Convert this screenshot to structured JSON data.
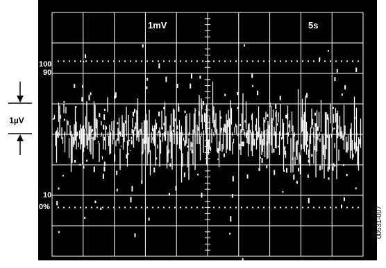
{
  "chart_data": {
    "type": "line",
    "title": "",
    "xlabel": "",
    "ylabel": "",
    "scale_labels": {
      "vertical": "1mV",
      "horizontal": "5s"
    },
    "reference_labels": [
      "100",
      "90",
      "10",
      "0%"
    ],
    "amplitude_scale_label": "1µV",
    "x": {
      "unit": "s",
      "per_division": 5,
      "divisions": 10,
      "range": [
        0,
        50
      ]
    },
    "y": {
      "unit": "µV",
      "range": [
        -4,
        4
      ],
      "divisions": 8
    },
    "series": [
      {
        "trace": "noise",
        "mean_uV": 0.0,
        "peak_to_peak_uV": 2.2,
        "envelope_uV": [
          -1.0,
          1.0
        ]
      }
    ],
    "grid": true,
    "colors": {
      "background": "#000000",
      "grid": "#ffffff",
      "trace": "#ffffff"
    }
  },
  "figure_id": "00531-007"
}
